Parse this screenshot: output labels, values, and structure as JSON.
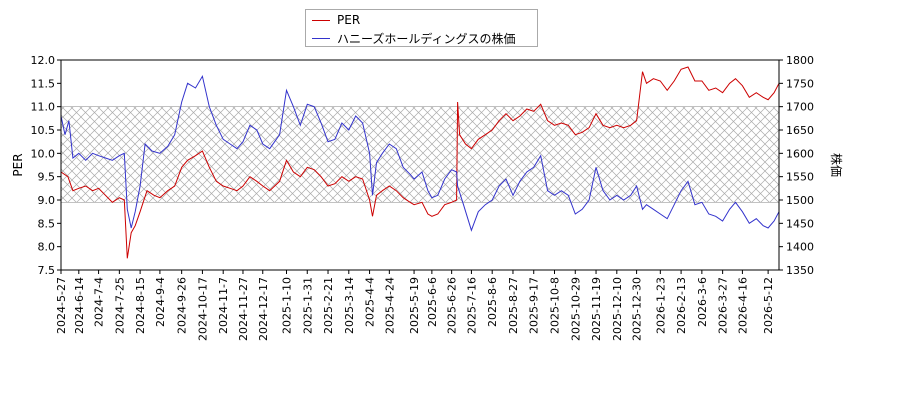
{
  "chart_data": {
    "type": "line",
    "title": "",
    "xlabel": "",
    "ylabel_left": "PER",
    "ylabel_right": "株価",
    "ylim_left": [
      7.5,
      12.0
    ],
    "ylim_right": [
      1350,
      1800
    ],
    "yticks_left": [
      "7.5",
      "8.0",
      "8.5",
      "9.0",
      "9.5",
      "10.0",
      "10.5",
      "11.0",
      "11.5",
      "12.0"
    ],
    "yticks_right": [
      "1350",
      "1400",
      "1450",
      "1500",
      "1550",
      "1600",
      "1650",
      "1700",
      "1750",
      "1800"
    ],
    "x_range": [
      "2024-05-27",
      "2026-05-23"
    ],
    "xticks": [
      "2024-5-27",
      "2024-6-14",
      "2024-7-4",
      "2024-7-25",
      "2024-8-15",
      "2024-9-4",
      "2024-9-26",
      "2024-10-17",
      "2024-11-7",
      "2024-11-27",
      "2024-12-17",
      "2025-1-10",
      "2025-1-31",
      "2025-2-21",
      "2025-3-14",
      "2025-4-4",
      "2025-4-24",
      "2025-5-19",
      "2025-6-6",
      "2025-6-26",
      "2025-7-16",
      "2025-8-6",
      "2025-8-27",
      "2025-9-17",
      "2025-10-8",
      "2025-10-29",
      "2025-11-19",
      "2025-12-10",
      "2025-12-30",
      "2026-1-23",
      "2026-2-13",
      "2026-3-6",
      "2026-3-27",
      "2026-4-16",
      "2026-5-12"
    ],
    "band": {
      "label": "PER normal range (hatched)",
      "from": 8.95,
      "to": 11.0
    },
    "legend_position": "top-left",
    "grid": false,
    "series": [
      {
        "name": "PER",
        "axis": "left",
        "color": "#cc0000",
        "points": [
          [
            "2024-05-27",
            9.6
          ],
          [
            "2024-06-03",
            9.5
          ],
          [
            "2024-06-08",
            9.2
          ],
          [
            "2024-06-14",
            9.25
          ],
          [
            "2024-06-21",
            9.3
          ],
          [
            "2024-06-28",
            9.2
          ],
          [
            "2024-07-04",
            9.25
          ],
          [
            "2024-07-11",
            9.1
          ],
          [
            "2024-07-18",
            8.95
          ],
          [
            "2024-07-25",
            9.05
          ],
          [
            "2024-07-30",
            9.0
          ],
          [
            "2024-08-02",
            7.75
          ],
          [
            "2024-08-06",
            8.3
          ],
          [
            "2024-08-10",
            8.45
          ],
          [
            "2024-08-15",
            8.75
          ],
          [
            "2024-08-22",
            9.2
          ],
          [
            "2024-08-29",
            9.1
          ],
          [
            "2024-09-04",
            9.05
          ],
          [
            "2024-09-12",
            9.2
          ],
          [
            "2024-09-19",
            9.3
          ],
          [
            "2024-09-26",
            9.7
          ],
          [
            "2024-10-02",
            9.85
          ],
          [
            "2024-10-10",
            9.95
          ],
          [
            "2024-10-17",
            10.05
          ],
          [
            "2024-10-24",
            9.7
          ],
          [
            "2024-10-31",
            9.4
          ],
          [
            "2024-11-07",
            9.3
          ],
          [
            "2024-11-14",
            9.25
          ],
          [
            "2024-11-21",
            9.2
          ],
          [
            "2024-11-27",
            9.3
          ],
          [
            "2024-12-04",
            9.5
          ],
          [
            "2024-12-11",
            9.4
          ],
          [
            "2024-12-17",
            9.3
          ],
          [
            "2024-12-24",
            9.2
          ],
          [
            "2025-01-03",
            9.4
          ],
          [
            "2025-01-10",
            9.85
          ],
          [
            "2025-01-17",
            9.6
          ],
          [
            "2025-01-24",
            9.5
          ],
          [
            "2025-01-31",
            9.7
          ],
          [
            "2025-02-07",
            9.65
          ],
          [
            "2025-02-14",
            9.5
          ],
          [
            "2025-02-21",
            9.3
          ],
          [
            "2025-02-28",
            9.35
          ],
          [
            "2025-03-07",
            9.5
          ],
          [
            "2025-03-14",
            9.4
          ],
          [
            "2025-03-21",
            9.5
          ],
          [
            "2025-03-28",
            9.45
          ],
          [
            "2025-04-04",
            9.0
          ],
          [
            "2025-04-07",
            8.65
          ],
          [
            "2025-04-11",
            9.1
          ],
          [
            "2025-04-17",
            9.2
          ],
          [
            "2025-04-24",
            9.3
          ],
          [
            "2025-05-01",
            9.2
          ],
          [
            "2025-05-08",
            9.05
          ],
          [
            "2025-05-15",
            8.95
          ],
          [
            "2025-05-19",
            8.9
          ],
          [
            "2025-05-27",
            8.95
          ],
          [
            "2025-06-02",
            8.7
          ],
          [
            "2025-06-06",
            8.65
          ],
          [
            "2025-06-12",
            8.7
          ],
          [
            "2025-06-19",
            8.9
          ],
          [
            "2025-06-26",
            8.95
          ],
          [
            "2025-07-01",
            9.0
          ],
          [
            "2025-07-02",
            11.1
          ],
          [
            "2025-07-04",
            10.4
          ],
          [
            "2025-07-10",
            10.2
          ],
          [
            "2025-07-16",
            10.1
          ],
          [
            "2025-07-23",
            10.3
          ],
          [
            "2025-07-30",
            10.4
          ],
          [
            "2025-08-06",
            10.5
          ],
          [
            "2025-08-13",
            10.7
          ],
          [
            "2025-08-20",
            10.85
          ],
          [
            "2025-08-27",
            10.7
          ],
          [
            "2025-09-03",
            10.8
          ],
          [
            "2025-09-10",
            10.95
          ],
          [
            "2025-09-17",
            10.9
          ],
          [
            "2025-09-24",
            11.05
          ],
          [
            "2025-10-01",
            10.7
          ],
          [
            "2025-10-08",
            10.6
          ],
          [
            "2025-10-15",
            10.65
          ],
          [
            "2025-10-22",
            10.6
          ],
          [
            "2025-10-29",
            10.4
          ],
          [
            "2025-11-05",
            10.45
          ],
          [
            "2025-11-12",
            10.55
          ],
          [
            "2025-11-19",
            10.85
          ],
          [
            "2025-11-26",
            10.6
          ],
          [
            "2025-12-03",
            10.55
          ],
          [
            "2025-12-10",
            10.6
          ],
          [
            "2025-12-17",
            10.55
          ],
          [
            "2025-12-24",
            10.6
          ],
          [
            "2025-12-30",
            10.7
          ],
          [
            "2026-01-05",
            11.75
          ],
          [
            "2026-01-09",
            11.5
          ],
          [
            "2026-01-16",
            11.6
          ],
          [
            "2026-01-23",
            11.55
          ],
          [
            "2026-01-30",
            11.35
          ],
          [
            "2026-02-06",
            11.55
          ],
          [
            "2026-02-13",
            11.8
          ],
          [
            "2026-02-20",
            11.85
          ],
          [
            "2026-02-27",
            11.55
          ],
          [
            "2026-03-06",
            11.55
          ],
          [
            "2026-03-13",
            11.35
          ],
          [
            "2026-03-20",
            11.4
          ],
          [
            "2026-03-27",
            11.3
          ],
          [
            "2026-04-03",
            11.5
          ],
          [
            "2026-04-09",
            11.6
          ],
          [
            "2026-04-16",
            11.45
          ],
          [
            "2026-04-23",
            11.2
          ],
          [
            "2026-04-30",
            11.3
          ],
          [
            "2026-05-07",
            11.2
          ],
          [
            "2026-05-12",
            11.15
          ],
          [
            "2026-05-18",
            11.3
          ],
          [
            "2026-05-23",
            11.5
          ]
        ]
      },
      {
        "name": "ハニーズホールディングスの株価",
        "axis": "right",
        "color": "#3333cc",
        "points": [
          [
            "2024-05-27",
            1680
          ],
          [
            "2024-05-31",
            1640
          ],
          [
            "2024-06-04",
            1670
          ],
          [
            "2024-06-08",
            1590
          ],
          [
            "2024-06-14",
            1600
          ],
          [
            "2024-06-21",
            1585
          ],
          [
            "2024-06-28",
            1600
          ],
          [
            "2024-07-04",
            1595
          ],
          [
            "2024-07-11",
            1590
          ],
          [
            "2024-07-18",
            1585
          ],
          [
            "2024-07-25",
            1595
          ],
          [
            "2024-07-30",
            1600
          ],
          [
            "2024-08-02",
            1480
          ],
          [
            "2024-08-06",
            1440
          ],
          [
            "2024-08-10",
            1475
          ],
          [
            "2024-08-15",
            1530
          ],
          [
            "2024-08-20",
            1620
          ],
          [
            "2024-08-27",
            1605
          ],
          [
            "2024-09-04",
            1600
          ],
          [
            "2024-09-12",
            1615
          ],
          [
            "2024-09-19",
            1640
          ],
          [
            "2024-09-26",
            1710
          ],
          [
            "2024-10-02",
            1750
          ],
          [
            "2024-10-10",
            1740
          ],
          [
            "2024-10-17",
            1765
          ],
          [
            "2024-10-24",
            1700
          ],
          [
            "2024-10-31",
            1660
          ],
          [
            "2024-11-07",
            1630
          ],
          [
            "2024-11-14",
            1620
          ],
          [
            "2024-11-21",
            1610
          ],
          [
            "2024-11-27",
            1625
          ],
          [
            "2024-12-04",
            1660
          ],
          [
            "2024-12-11",
            1650
          ],
          [
            "2024-12-17",
            1620
          ],
          [
            "2024-12-24",
            1610
          ],
          [
            "2025-01-03",
            1640
          ],
          [
            "2025-01-10",
            1735
          ],
          [
            "2025-01-17",
            1700
          ],
          [
            "2025-01-24",
            1660
          ],
          [
            "2025-01-31",
            1705
          ],
          [
            "2025-02-07",
            1700
          ],
          [
            "2025-02-14",
            1665
          ],
          [
            "2025-02-21",
            1625
          ],
          [
            "2025-02-28",
            1630
          ],
          [
            "2025-03-07",
            1665
          ],
          [
            "2025-03-14",
            1650
          ],
          [
            "2025-03-21",
            1680
          ],
          [
            "2025-03-28",
            1665
          ],
          [
            "2025-04-04",
            1600
          ],
          [
            "2025-04-07",
            1510
          ],
          [
            "2025-04-11",
            1580
          ],
          [
            "2025-04-17",
            1600
          ],
          [
            "2025-04-24",
            1620
          ],
          [
            "2025-05-01",
            1610
          ],
          [
            "2025-05-08",
            1570
          ],
          [
            "2025-05-15",
            1555
          ],
          [
            "2025-05-19",
            1545
          ],
          [
            "2025-05-27",
            1560
          ],
          [
            "2025-06-02",
            1520
          ],
          [
            "2025-06-06",
            1505
          ],
          [
            "2025-06-12",
            1510
          ],
          [
            "2025-06-19",
            1545
          ],
          [
            "2025-06-26",
            1565
          ],
          [
            "2025-07-01",
            1560
          ],
          [
            "2025-07-02",
            1530
          ],
          [
            "2025-07-08",
            1490
          ],
          [
            "2025-07-16",
            1435
          ],
          [
            "2025-07-23",
            1475
          ],
          [
            "2025-07-30",
            1490
          ],
          [
            "2025-08-06",
            1500
          ],
          [
            "2025-08-13",
            1530
          ],
          [
            "2025-08-20",
            1545
          ],
          [
            "2025-08-27",
            1510
          ],
          [
            "2025-09-03",
            1540
          ],
          [
            "2025-09-10",
            1560
          ],
          [
            "2025-09-17",
            1570
          ],
          [
            "2025-09-24",
            1595
          ],
          [
            "2025-10-01",
            1520
          ],
          [
            "2025-10-08",
            1510
          ],
          [
            "2025-10-15",
            1520
          ],
          [
            "2025-10-22",
            1510
          ],
          [
            "2025-10-29",
            1470
          ],
          [
            "2025-11-05",
            1480
          ],
          [
            "2025-11-12",
            1500
          ],
          [
            "2025-11-19",
            1570
          ],
          [
            "2025-11-26",
            1520
          ],
          [
            "2025-12-03",
            1500
          ],
          [
            "2025-12-10",
            1510
          ],
          [
            "2025-12-17",
            1500
          ],
          [
            "2025-12-24",
            1510
          ],
          [
            "2025-12-30",
            1530
          ],
          [
            "2026-01-05",
            1480
          ],
          [
            "2026-01-09",
            1490
          ],
          [
            "2026-01-16",
            1480
          ],
          [
            "2026-01-23",
            1470
          ],
          [
            "2026-01-30",
            1460
          ],
          [
            "2026-02-06",
            1490
          ],
          [
            "2026-02-13",
            1520
          ],
          [
            "2026-02-20",
            1540
          ],
          [
            "2026-02-27",
            1490
          ],
          [
            "2026-03-06",
            1495
          ],
          [
            "2026-03-13",
            1470
          ],
          [
            "2026-03-20",
            1465
          ],
          [
            "2026-03-27",
            1455
          ],
          [
            "2026-04-03",
            1480
          ],
          [
            "2026-04-09",
            1495
          ],
          [
            "2026-04-16",
            1475
          ],
          [
            "2026-04-23",
            1450
          ],
          [
            "2026-04-30",
            1460
          ],
          [
            "2026-05-07",
            1445
          ],
          [
            "2026-05-12",
            1440
          ],
          [
            "2026-05-18",
            1455
          ],
          [
            "2026-05-23",
            1475
          ]
        ]
      }
    ]
  }
}
